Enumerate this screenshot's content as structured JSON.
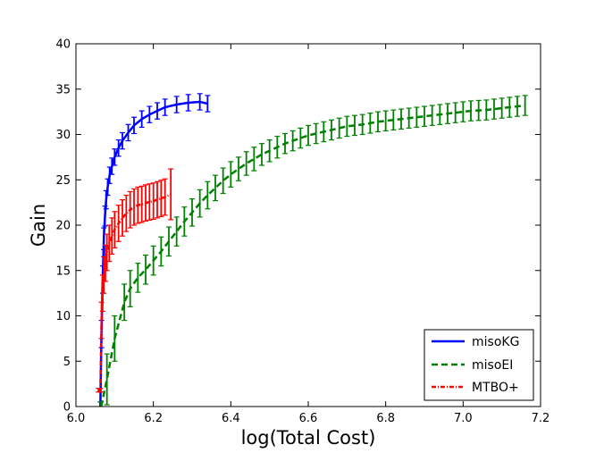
{
  "chart_data": {
    "type": "line",
    "xlabel": "log(Total Cost)",
    "ylabel": "Gain",
    "xlim": [
      6.0,
      7.2
    ],
    "ylim": [
      0,
      40
    ],
    "xticks": [
      "6.0",
      "6.2",
      "6.4",
      "6.6",
      "6.8",
      "7.0",
      "7.2"
    ],
    "yticks": [
      "0",
      "5",
      "10",
      "15",
      "20",
      "25",
      "30",
      "35",
      "40"
    ],
    "grid": false,
    "legend_position": "bottom-right",
    "series": [
      {
        "name": "misoKG",
        "color": "#0000ff",
        "line_style": "solid",
        "x": [
          6.063,
          6.066,
          6.069,
          6.072,
          6.075,
          6.078,
          6.082,
          6.087,
          6.093,
          6.1,
          6.11,
          6.12,
          6.135,
          6.15,
          6.17,
          6.19,
          6.21,
          6.23,
          6.26,
          6.29,
          6.32,
          6.34
        ],
        "y": [
          0,
          8,
          14,
          18.5,
          21,
          22.8,
          24.2,
          25.5,
          26.5,
          27.5,
          28.5,
          29.3,
          30.2,
          31,
          31.7,
          32.2,
          32.6,
          33,
          33.3,
          33.5,
          33.6,
          33.4
        ],
        "err": [
          0.5,
          1.5,
          1.5,
          1.2,
          1.1,
          1.0,
          0.9,
          0.9,
          0.9,
          0.9,
          0.9,
          0.9,
          0.9,
          0.9,
          0.9,
          0.9,
          0.9,
          0.9,
          0.9,
          0.9,
          0.9,
          0.9
        ]
      },
      {
        "name": "misoEI",
        "color": "#008000",
        "line_style": "dashed",
        "x": [
          6.065,
          6.08,
          6.1,
          6.125,
          6.14,
          6.16,
          6.18,
          6.2,
          6.22,
          6.24,
          6.26,
          6.28,
          6.3,
          6.32,
          6.34,
          6.36,
          6.38,
          6.4,
          6.42,
          6.44,
          6.46,
          6.48,
          6.5,
          6.52,
          6.54,
          6.56,
          6.58,
          6.6,
          6.62,
          6.64,
          6.66,
          6.68,
          6.7,
          6.72,
          6.74,
          6.76,
          6.78,
          6.8,
          6.82,
          6.84,
          6.86,
          6.88,
          6.9,
          6.92,
          6.94,
          6.96,
          6.98,
          7.0,
          7.02,
          7.04,
          7.06,
          7.08,
          7.1,
          7.12,
          7.14,
          7.16
        ],
        "y": [
          0,
          3,
          7.5,
          11.5,
          13,
          14.2,
          15.1,
          16.1,
          17.1,
          18.2,
          19.3,
          20.4,
          21.4,
          22.4,
          23.3,
          24.1,
          24.9,
          25.6,
          26.2,
          26.8,
          27.3,
          27.8,
          28.2,
          28.6,
          29.0,
          29.3,
          29.6,
          29.9,
          30.1,
          30.3,
          30.5,
          30.7,
          30.9,
          31.0,
          31.1,
          31.25,
          31.4,
          31.5,
          31.6,
          31.7,
          31.8,
          31.9,
          32.0,
          32.1,
          32.2,
          32.3,
          32.4,
          32.5,
          32.6,
          32.65,
          32.7,
          32.8,
          32.9,
          33.0,
          33.1,
          33.2
        ],
        "err": [
          0.5,
          2.8,
          2.5,
          2.0,
          2.0,
          1.6,
          1.6,
          1.6,
          1.6,
          1.6,
          1.6,
          1.6,
          1.5,
          1.5,
          1.5,
          1.4,
          1.4,
          1.4,
          1.3,
          1.3,
          1.3,
          1.2,
          1.2,
          1.2,
          1.1,
          1.1,
          1.1,
          1.1,
          1.1,
          1.1,
          1.1,
          1.1,
          1.1,
          1.1,
          1.1,
          1.1,
          1.1,
          1.1,
          1.1,
          1.1,
          1.1,
          1.1,
          1.1,
          1.1,
          1.1,
          1.1,
          1.1,
          1.1,
          1.1,
          1.1,
          1.1,
          1.1,
          1.1,
          1.1,
          1.1,
          1.1
        ]
      },
      {
        "name": "MTBO+",
        "color": "#ff0000",
        "line_style": "dashdot",
        "x": [
          6.058,
          6.063,
          6.066,
          6.069,
          6.072,
          6.076,
          6.08,
          6.086,
          6.093,
          6.1,
          6.11,
          6.12,
          6.13,
          6.14,
          6.15,
          6.16,
          6.17,
          6.18,
          6.19,
          6.2,
          6.21,
          6.22,
          6.23,
          6.245
        ],
        "y": [
          1.8,
          1.8,
          9.5,
          12.5,
          14.5,
          15.8,
          17.0,
          18.0,
          18.8,
          19.5,
          20.2,
          20.8,
          21.3,
          21.7,
          22.0,
          22.2,
          22.3,
          22.45,
          22.55,
          22.65,
          22.8,
          22.95,
          23.1,
          23.4
        ],
        "err": [
          0.2,
          0.2,
          2.0,
          2.0,
          2.0,
          2.0,
          2.0,
          2.0,
          2.0,
          2.0,
          2.0,
          2.0,
          2.0,
          2.0,
          2.0,
          2.0,
          2.0,
          2.0,
          2.0,
          2.0,
          2.0,
          2.0,
          2.0,
          2.8
        ]
      }
    ]
  }
}
